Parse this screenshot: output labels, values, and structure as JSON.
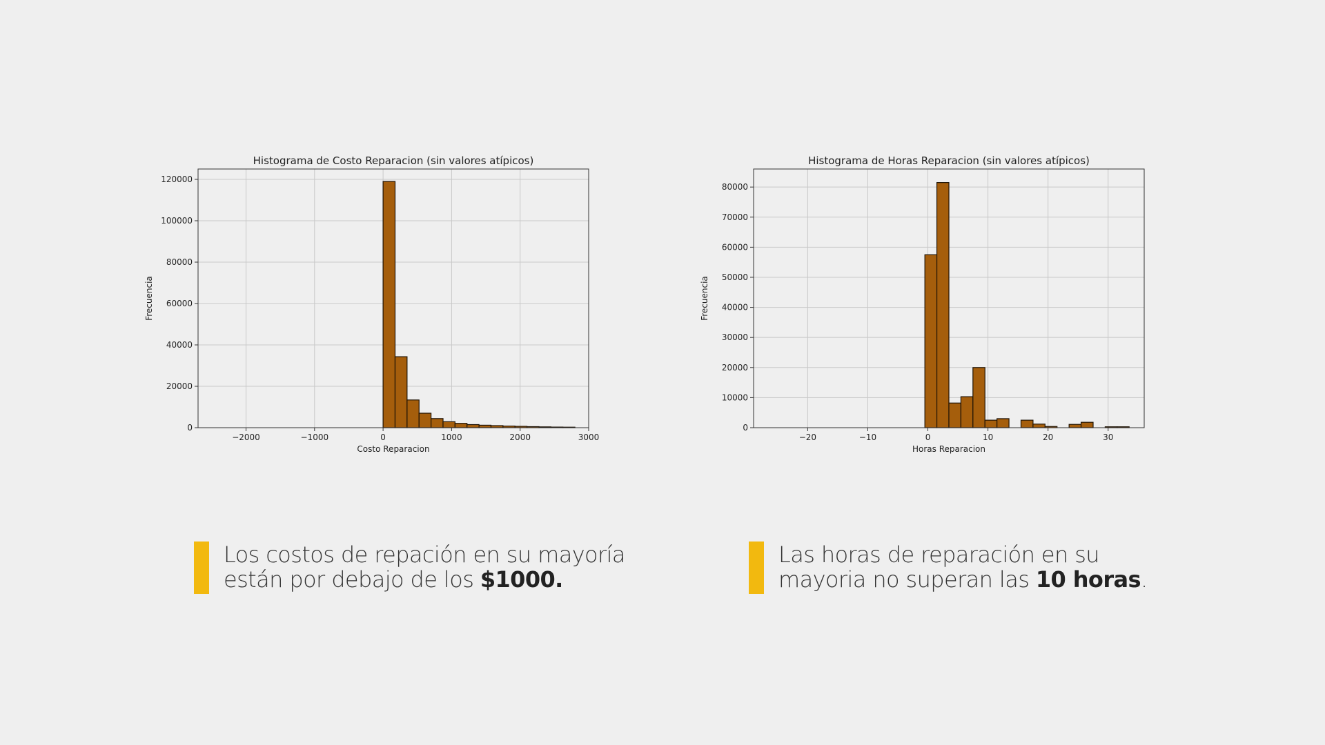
{
  "captions": {
    "left": {
      "text": "Los costos de repación en su mayoría están por debajo de los ",
      "bold": "$1000."
    },
    "right": {
      "text": "Las horas de reparación en su mayoria no superan las ",
      "bold": "10 horas",
      "tail": "."
    }
  },
  "colors": {
    "bar_fill": "#a55e0c",
    "bar_edge": "#1e1306",
    "accent": "#f2b90f",
    "background": "#efefef"
  },
  "chart_data": [
    {
      "type": "bar",
      "title": "Histograma de Costo Reparacion (sin valores atípicos)",
      "xlabel": "Costo Reparacion",
      "ylabel": "Frecuencia",
      "xlim": [
        -2700,
        3000
      ],
      "ylim": [
        0,
        125000
      ],
      "xticks": [
        -2000,
        -1000,
        0,
        1000,
        2000,
        3000
      ],
      "xtick_labels": [
        "−2000",
        "−1000",
        "0",
        "1000",
        "2000",
        "3000"
      ],
      "yticks": [
        0,
        20000,
        40000,
        60000,
        80000,
        100000,
        120000
      ],
      "ytick_labels": [
        "0",
        "20000",
        "40000",
        "60000",
        "80000",
        "100000",
        "120000"
      ],
      "grid": true,
      "bin_width": 175,
      "bin_starts": [
        0,
        175,
        350,
        525,
        700,
        875,
        1050,
        1225,
        1400,
        1575,
        1750,
        1925,
        2100,
        2275,
        2450,
        2625
      ],
      "values": [
        119000,
        34300,
        13400,
        7000,
        4400,
        2900,
        2100,
        1500,
        1200,
        1000,
        800,
        650,
        500,
        400,
        300,
        250
      ]
    },
    {
      "type": "bar",
      "title": "Histograma de Horas Reparacion (sin valores atípicos)",
      "xlabel": "Horas Reparacion",
      "ylabel": "Frecuencia",
      "xlim": [
        -29,
        36
      ],
      "ylim": [
        0,
        86000
      ],
      "xticks": [
        -20,
        -10,
        0,
        10,
        20,
        30
      ],
      "xtick_labels": [
        "−20",
        "−10",
        "0",
        "10",
        "20",
        "30"
      ],
      "yticks": [
        0,
        10000,
        20000,
        30000,
        40000,
        50000,
        60000,
        70000,
        80000
      ],
      "ytick_labels": [
        "0",
        "10000",
        "20000",
        "30000",
        "40000",
        "50000",
        "60000",
        "70000",
        "80000"
      ],
      "grid": true,
      "bin_width": 2,
      "bin_starts": [
        -0.5,
        1.5,
        3.5,
        5.5,
        7.5,
        9.5,
        11.5,
        13.5,
        15.5,
        17.5,
        19.5,
        21.5,
        23.5,
        25.5,
        27.5,
        29.5,
        31.5
      ],
      "values": [
        57500,
        81500,
        8200,
        10300,
        20000,
        2500,
        3000,
        0,
        2500,
        1200,
        400,
        0,
        1100,
        1800,
        0,
        300,
        300
      ]
    }
  ]
}
